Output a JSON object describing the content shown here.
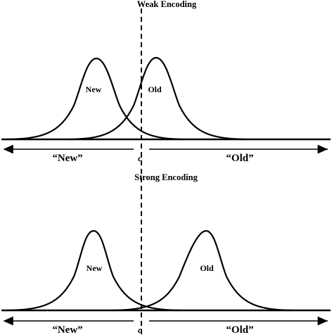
{
  "diagram": {
    "panels": [
      {
        "title": "Weak Encoding",
        "new_label": "New",
        "old_label": "Old",
        "response_new": "“New”",
        "response_old": "“Old”",
        "criterion": "c"
      },
      {
        "title": "Strong Encoding",
        "new_label": "New",
        "old_label": "Old",
        "response_new": "“New”",
        "response_old": "“Old”",
        "criterion": "c"
      }
    ]
  }
}
